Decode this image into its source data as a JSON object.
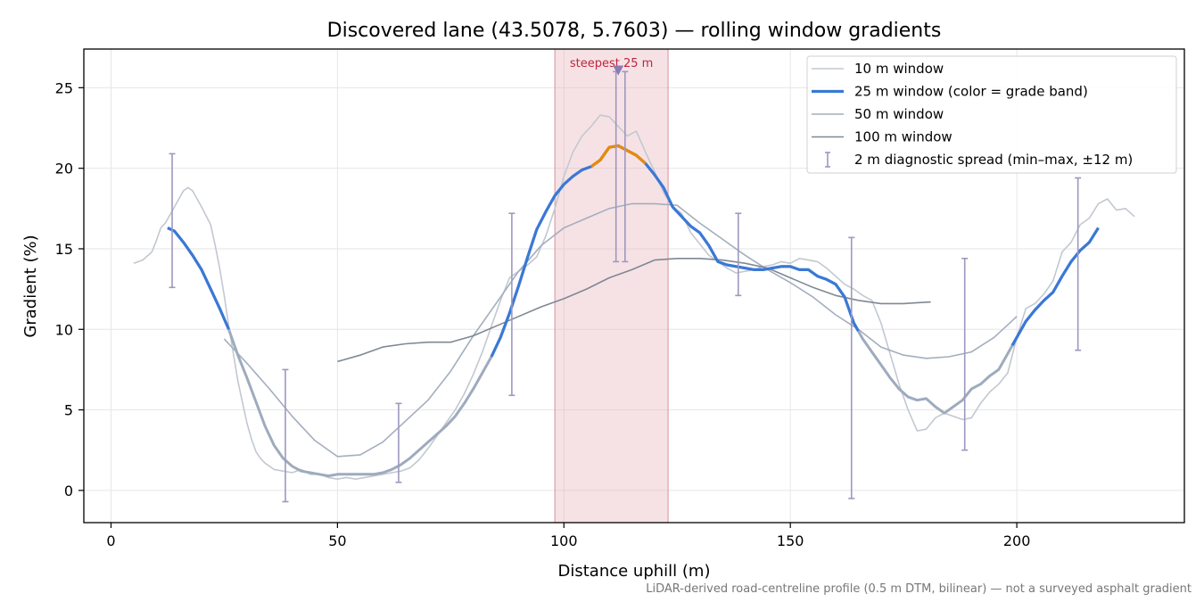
{
  "chart_data": {
    "type": "line",
    "title": "Discovered lane (43.5078, 5.7603) — rolling window gradients",
    "xlabel": "Distance uphill (m)",
    "ylabel": "Gradient (%)",
    "xlim": [
      -6,
      237
    ],
    "ylim": [
      -2,
      27.4
    ],
    "xticks": [
      0,
      50,
      100,
      150,
      200
    ],
    "yticks": [
      0,
      5,
      10,
      15,
      20,
      25
    ],
    "grid": true,
    "legend_position": "top-right",
    "footnote": "LiDAR-derived road-centreline profile (0.5 m DTM, bilinear) — not a surveyed asphalt gradient",
    "colors": {
      "w10": "#c2c8d1",
      "w25_band_low": "#3a78d6",
      "w25_band_high": "#e88a0c",
      "w25_plain": "#9eabbd",
      "w50": "#a3aebd",
      "w100": "#7f8894",
      "errorbar": "#9d98c0",
      "highlight_fill": "#e7b3bb",
      "highlight_text": "#c0253d",
      "marker": "#8a7bb2"
    },
    "highlight": {
      "label": "steepest 25 m",
      "x_start": 98,
      "x_end": 123,
      "peak": [
        112,
        26.1
      ]
    },
    "legend": [
      {
        "key": "w10",
        "label": "10 m window"
      },
      {
        "key": "w25",
        "label": "25 m window (color = grade band)"
      },
      {
        "key": "w50",
        "label": "50 m window"
      },
      {
        "key": "w100",
        "label": "100 m window"
      },
      {
        "key": "err",
        "label": "2 m diagnostic spread (min–max, ±12 m)"
      }
    ],
    "series": [
      {
        "name": "10 m window",
        "key": "w10",
        "x": [
          5,
          7,
          9,
          10,
          11,
          12,
          14,
          16,
          17,
          18,
          19,
          20,
          22,
          23,
          24,
          25,
          26,
          27,
          28,
          29,
          30,
          31,
          32,
          33,
          34,
          35,
          36,
          38,
          40,
          42,
          44,
          46,
          48,
          50,
          52,
          54,
          56,
          60,
          62,
          64,
          66,
          68,
          70,
          72,
          74,
          76,
          78,
          80,
          82,
          84,
          86,
          88,
          90,
          92,
          94,
          96,
          98,
          100,
          102,
          104,
          106,
          108,
          110,
          112,
          114,
          116,
          118,
          120,
          122,
          124,
          126,
          128,
          130,
          132,
          134,
          136,
          138,
          140,
          142,
          144,
          146,
          148,
          150,
          152,
          154,
          156,
          158,
          160,
          162,
          164,
          166,
          168,
          170,
          172,
          174,
          176,
          178,
          180,
          182,
          184,
          186,
          188,
          190,
          192,
          194,
          196,
          198,
          200,
          202,
          204,
          206,
          208,
          210,
          212,
          214,
          216,
          218,
          220,
          222,
          224,
          226
        ],
        "y": [
          14.1,
          14.3,
          14.8,
          15.5,
          16.3,
          16.6,
          17.6,
          18.6,
          18.8,
          18.6,
          18.1,
          17.6,
          16.5,
          15.2,
          13.8,
          12.1,
          10.2,
          8.5,
          6.8,
          5.5,
          4.2,
          3.2,
          2.4,
          2.0,
          1.7,
          1.5,
          1.3,
          1.2,
          1.1,
          1.3,
          1.0,
          1.0,
          0.8,
          0.7,
          0.8,
          0.7,
          0.8,
          1.0,
          1.1,
          1.2,
          1.4,
          1.9,
          2.6,
          3.4,
          4.2,
          5.0,
          6.0,
          7.2,
          8.6,
          10.2,
          11.8,
          13.2,
          13.6,
          14.0,
          14.5,
          15.8,
          17.5,
          19.5,
          21.0,
          22.0,
          22.6,
          23.3,
          23.2,
          22.6,
          22.0,
          22.3,
          21.0,
          19.8,
          18.5,
          17.6,
          17.2,
          16.0,
          15.3,
          14.6,
          14.2,
          13.8,
          13.5,
          13.6,
          13.7,
          13.9,
          14.0,
          14.2,
          14.1,
          14.4,
          14.3,
          14.2,
          13.8,
          13.3,
          12.8,
          12.5,
          12.1,
          11.8,
          10.4,
          8.5,
          6.6,
          5.0,
          3.7,
          3.8,
          4.5,
          4.8,
          4.6,
          4.4,
          4.5,
          5.4,
          6.1,
          6.6,
          7.3,
          9.5,
          11.3,
          11.6,
          12.2,
          13.0,
          14.8,
          15.4,
          16.5,
          16.9,
          17.8,
          18.1,
          17.4,
          17.5,
          17.0
        ]
      },
      {
        "name": "25 m window (color = grade band)",
        "key": "w25",
        "x": [
          12.5,
          14,
          16,
          18,
          20,
          22,
          24,
          26,
          28,
          30,
          32,
          34,
          36,
          38,
          40,
          42,
          44,
          46,
          48,
          50,
          52,
          54,
          56,
          58,
          60,
          62,
          64,
          66,
          68,
          70,
          72,
          74,
          76,
          78,
          80,
          82,
          84,
          86,
          88,
          90,
          92,
          94,
          96,
          98,
          100,
          102,
          104,
          106,
          108,
          110,
          112,
          114,
          116,
          118,
          120,
          122,
          124,
          126,
          128,
          130,
          132,
          134,
          136,
          138,
          140,
          142,
          144,
          146,
          148,
          150,
          152,
          154,
          156,
          158,
          160,
          162,
          164,
          166,
          168,
          170,
          172,
          174,
          176,
          178,
          180,
          182,
          184,
          186,
          188,
          190,
          192,
          194,
          196,
          198,
          200,
          202,
          204,
          206,
          208,
          210,
          212,
          214,
          216,
          218
        ],
        "y": [
          16.3,
          16.1,
          15.4,
          14.6,
          13.7,
          12.5,
          11.3,
          10.0,
          8.4,
          7.0,
          5.5,
          4.0,
          2.8,
          2.0,
          1.5,
          1.2,
          1.1,
          1.0,
          0.9,
          1.0,
          1.0,
          1.0,
          1.0,
          1.0,
          1.1,
          1.3,
          1.6,
          2.0,
          2.5,
          3.0,
          3.5,
          4.0,
          4.6,
          5.4,
          6.3,
          7.3,
          8.3,
          9.5,
          11.0,
          12.7,
          14.5,
          16.2,
          17.3,
          18.3,
          19.0,
          19.5,
          19.9,
          20.1,
          20.5,
          21.3,
          21.4,
          21.1,
          20.8,
          20.3,
          19.6,
          18.8,
          17.6,
          17.0,
          16.4,
          16.0,
          15.2,
          14.2,
          14.0,
          13.9,
          13.8,
          13.7,
          13.7,
          13.8,
          13.9,
          13.9,
          13.7,
          13.7,
          13.3,
          13.1,
          12.8,
          12.0,
          10.4,
          9.4,
          8.6,
          7.8,
          7.0,
          6.3,
          5.8,
          5.6,
          5.7,
          5.2,
          4.8,
          5.2,
          5.6,
          6.3,
          6.6,
          7.1,
          7.5,
          8.5,
          9.5,
          10.5,
          11.2,
          11.8,
          12.3,
          13.3,
          14.2,
          14.9,
          15.4,
          16.3
        ],
        "band": [
          0,
          0,
          0,
          0,
          0,
          0,
          0,
          0,
          0,
          0,
          0,
          0,
          0,
          0,
          0,
          0,
          0,
          0,
          0,
          0,
          0,
          0,
          0,
          0,
          0,
          0,
          0,
          0,
          0,
          0,
          0,
          0,
          0,
          0,
          0,
          0,
          0,
          0,
          0,
          0,
          0,
          0,
          0,
          0,
          0,
          0,
          0,
          1,
          1,
          1,
          1,
          1,
          1,
          1,
          0,
          0,
          0,
          0,
          0,
          0,
          0,
          0,
          0,
          0,
          0,
          0,
          0,
          0,
          0,
          0,
          0,
          0,
          0,
          0,
          0,
          0,
          0,
          0,
          0,
          0,
          0,
          0,
          0,
          0,
          0,
          0,
          0,
          0,
          0,
          0,
          0,
          0,
          0,
          0,
          0,
          0,
          0,
          0,
          0,
          0,
          0,
          0,
          0,
          0
        ],
        "band_segments": [
          {
            "x_start": 12.5,
            "x_end": 26,
            "band": "low"
          },
          {
            "x_start": 84,
            "x_end": 165,
            "band": "low"
          },
          {
            "x_start": 199,
            "x_end": 218,
            "band": "low"
          }
        ]
      },
      {
        "name": "50 m window",
        "key": "w50",
        "x": [
          25,
          30,
          35,
          40,
          45,
          50,
          55,
          60,
          65,
          70,
          75,
          80,
          85,
          90,
          95,
          100,
          105,
          110,
          115,
          120,
          125,
          130,
          135,
          140,
          145,
          150,
          155,
          160,
          165,
          170,
          175,
          180,
          185,
          190,
          195,
          200
        ],
        "y": [
          9.4,
          7.9,
          6.3,
          4.6,
          3.1,
          2.1,
          2.2,
          3.0,
          4.3,
          5.6,
          7.4,
          9.6,
          11.6,
          13.6,
          15.2,
          16.3,
          16.9,
          17.5,
          17.8,
          17.8,
          17.7,
          16.6,
          15.6,
          14.6,
          13.7,
          12.9,
          12.0,
          10.9,
          10.0,
          8.9,
          8.4,
          8.2,
          8.3,
          8.6,
          9.5,
          10.8
        ]
      },
      {
        "name": "100 m window",
        "key": "w100",
        "x": [
          50,
          55,
          60,
          65,
          70,
          75,
          80,
          85,
          90,
          95,
          100,
          105,
          110,
          115,
          120,
          125,
          130,
          135,
          140,
          145,
          150,
          155,
          160,
          165,
          170,
          175,
          181
        ],
        "y": [
          8.0,
          8.4,
          8.9,
          9.1,
          9.2,
          9.2,
          9.6,
          10.2,
          10.8,
          11.4,
          11.9,
          12.5,
          13.2,
          13.7,
          14.3,
          14.4,
          14.4,
          14.3,
          14.1,
          13.8,
          13.2,
          12.6,
          12.1,
          11.8,
          11.6,
          11.6,
          11.7
        ]
      }
    ],
    "error_bars": {
      "name": "2 m diagnostic spread (min–max, ±12 m)",
      "points": [
        {
          "x": 13.5,
          "low": 12.6,
          "high": 20.9
        },
        {
          "x": 38.5,
          "low": -0.7,
          "high": 7.5
        },
        {
          "x": 63.5,
          "low": 0.5,
          "high": 5.4
        },
        {
          "x": 88.5,
          "low": 5.9,
          "high": 17.2
        },
        {
          "x": 111.5,
          "low": 14.2,
          "high": 26.0
        },
        {
          "x": 113.5,
          "low": 14.2,
          "high": 26.0
        },
        {
          "x": 138.5,
          "low": 12.1,
          "high": 17.2
        },
        {
          "x": 163.5,
          "low": -0.5,
          "high": 15.7
        },
        {
          "x": 188.5,
          "low": 2.5,
          "high": 14.4
        },
        {
          "x": 213.5,
          "low": 8.7,
          "high": 19.4
        }
      ]
    }
  }
}
